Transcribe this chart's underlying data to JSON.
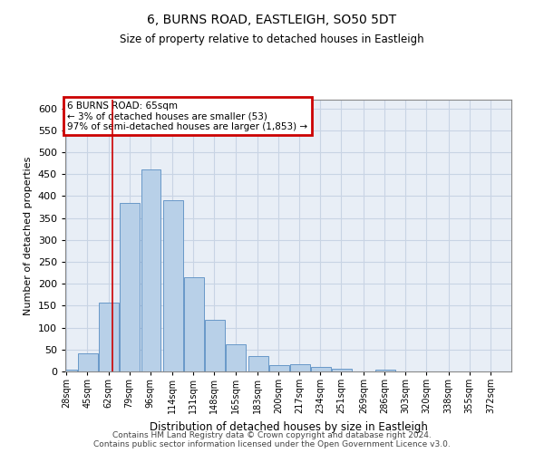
{
  "title": "6, BURNS ROAD, EASTLEIGH, SO50 5DT",
  "subtitle": "Size of property relative to detached houses in Eastleigh",
  "xlabel": "Distribution of detached houses by size in Eastleigh",
  "ylabel": "Number of detached properties",
  "footer_line1": "Contains HM Land Registry data © Crown copyright and database right 2024.",
  "footer_line2": "Contains public sector information licensed under the Open Government Licence v3.0.",
  "annotation_title": "6 BURNS ROAD: 65sqm",
  "annotation_line2": "← 3% of detached houses are smaller (53)",
  "annotation_line3": "97% of semi-detached houses are larger (1,853) →",
  "property_line_x": 65,
  "categories": [
    "28sqm",
    "45sqm",
    "62sqm",
    "79sqm",
    "96sqm",
    "114sqm",
    "131sqm",
    "148sqm",
    "165sqm",
    "183sqm",
    "200sqm",
    "217sqm",
    "234sqm",
    "251sqm",
    "269sqm",
    "286sqm",
    "303sqm",
    "320sqm",
    "338sqm",
    "355sqm",
    "372sqm"
  ],
  "bin_edges": [
    28,
    45,
    62,
    79,
    96,
    114,
    131,
    148,
    165,
    183,
    200,
    217,
    234,
    251,
    269,
    286,
    303,
    320,
    338,
    355,
    372
  ],
  "bar_heights": [
    5,
    42,
    158,
    385,
    460,
    390,
    215,
    118,
    63,
    35,
    14,
    16,
    10,
    6,
    0,
    5,
    0,
    0,
    0,
    0
  ],
  "bar_color": "#b8d0e8",
  "bar_edge_color": "#6898c8",
  "grid_color": "#c8d4e4",
  "background_color": "#e8eef6",
  "property_line_color": "#cc0000",
  "annotation_box_facecolor": "#ffffff",
  "annotation_box_edgecolor": "#cc0000",
  "ylim": [
    0,
    620
  ],
  "yticks": [
    0,
    50,
    100,
    150,
    200,
    250,
    300,
    350,
    400,
    450,
    500,
    550,
    600
  ]
}
